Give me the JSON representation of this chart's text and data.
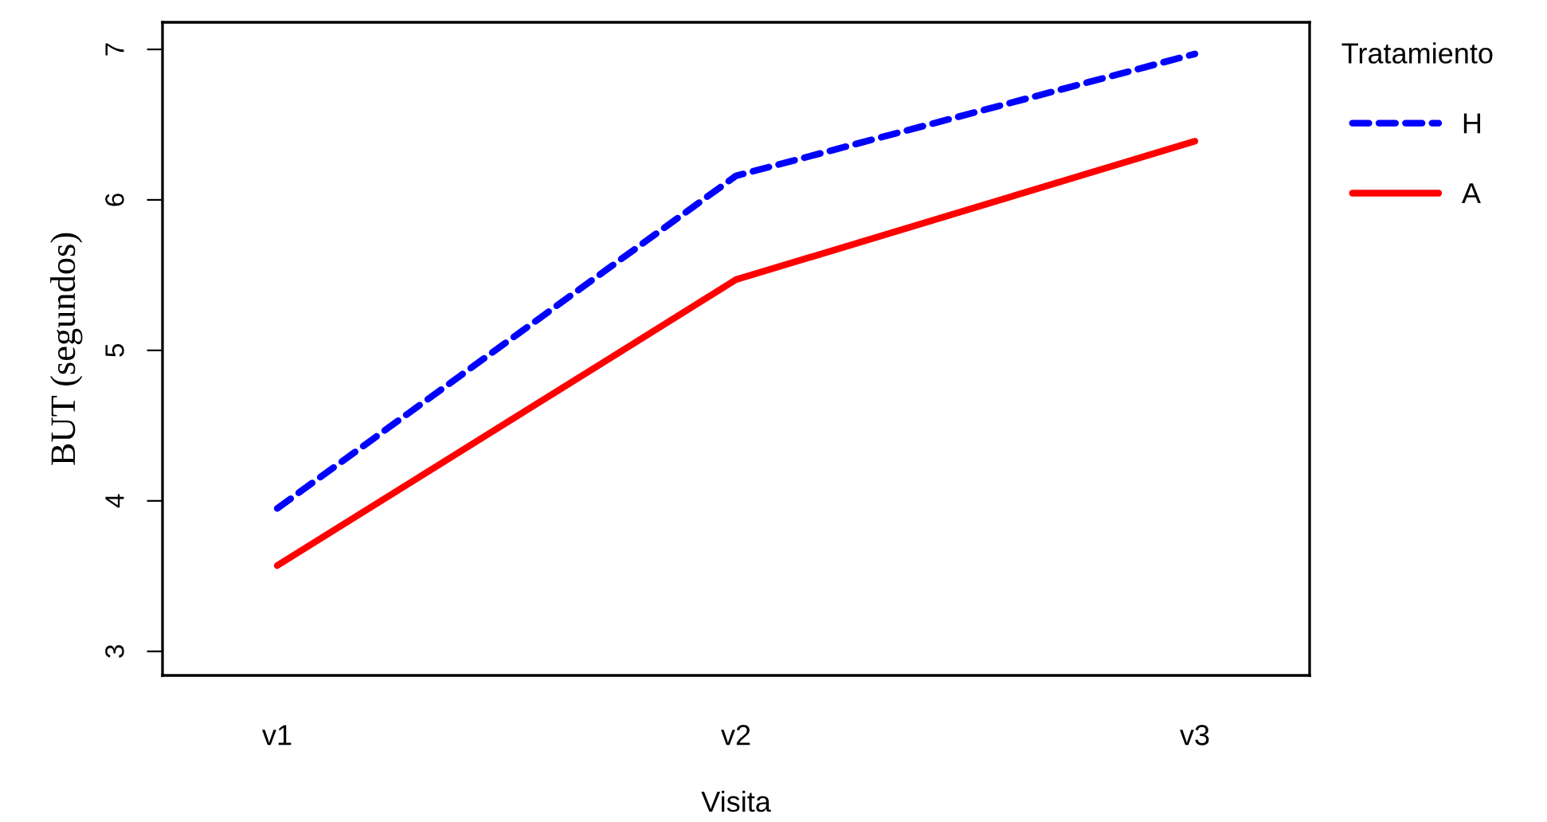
{
  "chart_data": {
    "type": "line",
    "xlabel": "Visita",
    "ylabel": "BUT (segundos)",
    "legend_title": "Tratamiento",
    "categories": [
      "v1",
      "v2",
      "v3"
    ],
    "series": [
      {
        "name": "H",
        "color": "#0000ff",
        "line_style": "dashed",
        "values": [
          3.95,
          6.16,
          6.97
        ]
      },
      {
        "name": "A",
        "color": "#ff0000",
        "line_style": "solid",
        "values": [
          3.57,
          5.47,
          6.39
        ]
      }
    ],
    "ylim": [
      2.84,
      7.18
    ],
    "yticks": [
      3,
      4,
      5,
      6,
      7
    ],
    "grid": false,
    "legend": "top right",
    "marker": "none"
  }
}
